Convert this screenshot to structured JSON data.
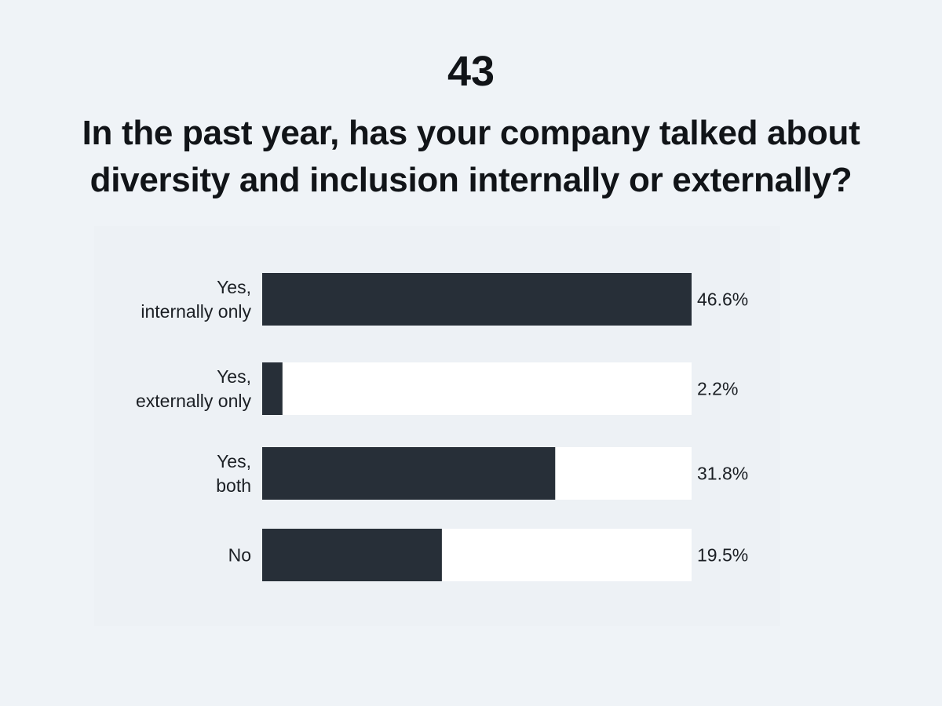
{
  "question_number": "43",
  "question_text": "In the past year, has your company talked about diversity and inclusion internally or externally?",
  "colors": {
    "bar_fill": "#272f38",
    "track": "#ffffff",
    "background": "#eff3f7",
    "text": "#111418"
  },
  "chart_data": {
    "type": "bar",
    "orientation": "horizontal",
    "title": "In the past year, has your company talked about diversity and inclusion internally or externally?",
    "categories": [
      [
        "Yes,",
        "internally only"
      ],
      [
        "Yes,",
        "externally only"
      ],
      [
        "Yes,",
        "both"
      ],
      [
        "No"
      ]
    ],
    "values": [
      46.6,
      2.2,
      31.8,
      19.5
    ],
    "value_labels": [
      "46.6%",
      "2.2%",
      "31.8%",
      "19.5%"
    ],
    "xlim": [
      0,
      46.6
    ],
    "xlabel": "",
    "ylabel": "",
    "grid": false,
    "legend": "none"
  }
}
